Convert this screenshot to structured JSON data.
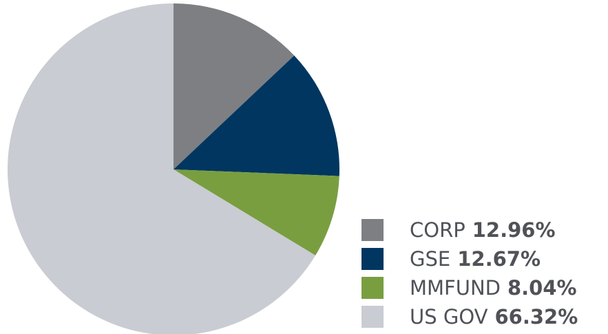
{
  "chart_data": {
    "type": "pie",
    "title": "",
    "legend_placement": "bottom-right",
    "slices": [
      {
        "label": "CORP",
        "value": 12.96,
        "display_value": "12.96%",
        "color": "#7e7f83"
      },
      {
        "label": "GSE",
        "value": 12.67,
        "display_value": "12.67%",
        "color": "#003660"
      },
      {
        "label": "MMFUND",
        "value": 8.04,
        "display_value": "8.04%",
        "color": "#799e40"
      },
      {
        "label": "US GOV",
        "value": 66.32,
        "display_value": "66.32%",
        "color": "#c9ccd2"
      }
    ]
  }
}
